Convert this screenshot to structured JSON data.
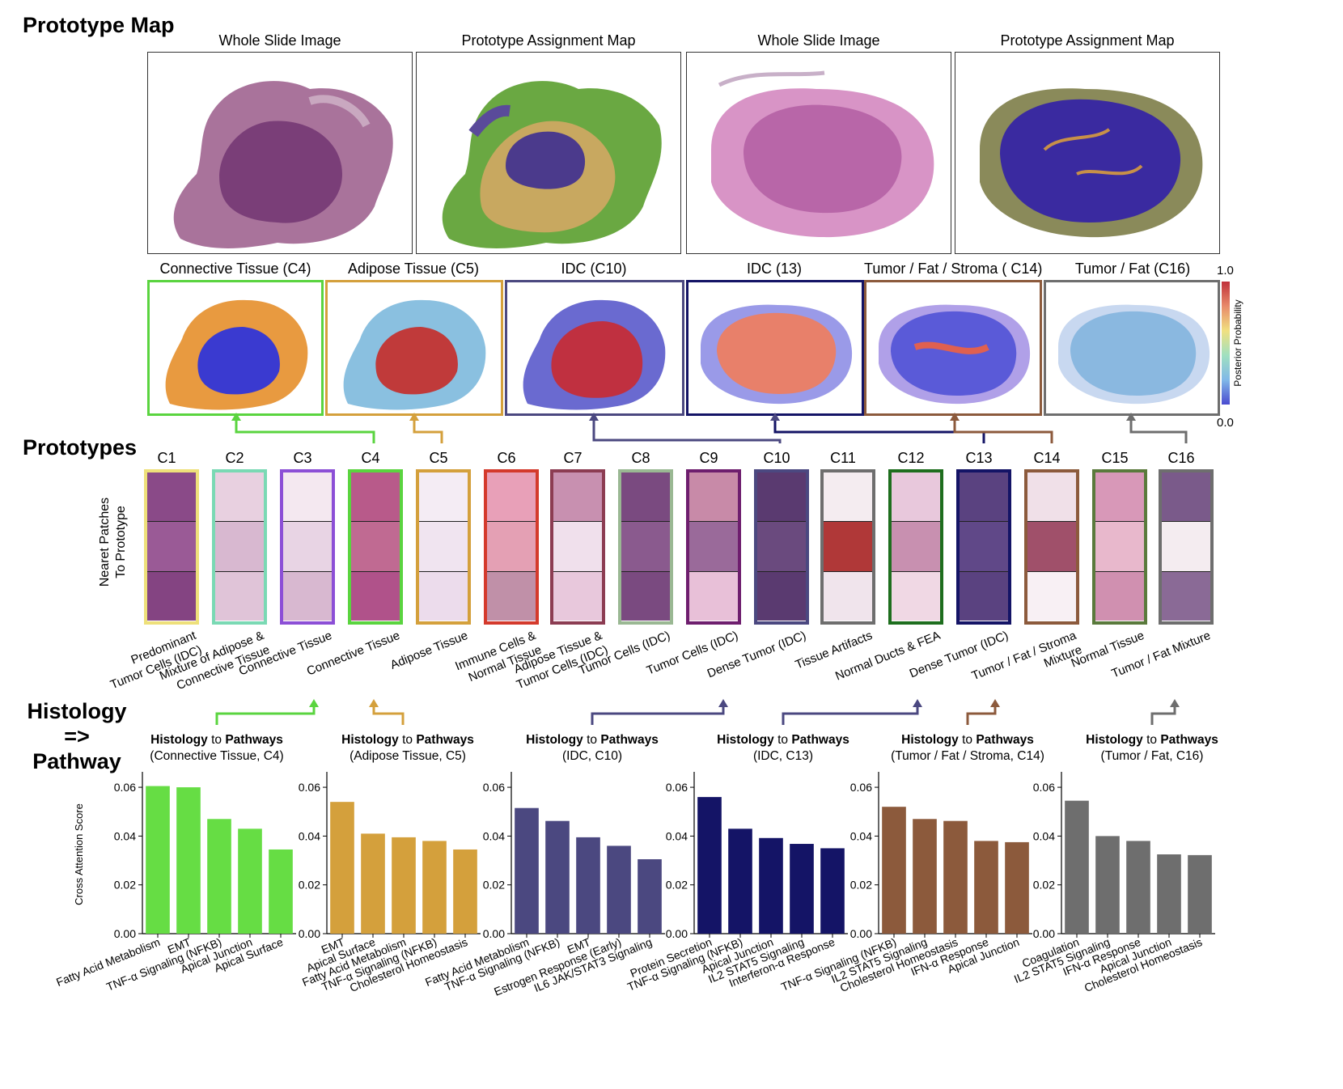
{
  "headings": {
    "prototype_map": "Prototype Map",
    "prototypes": "Prototypes",
    "histology_line1": "Histology",
    "histology_line2": "=> Pathway"
  },
  "slides": [
    {
      "title": "Whole Slide Image"
    },
    {
      "title": "Prototype Assignment Map"
    },
    {
      "title": "Whole Slide Image"
    },
    {
      "title": "Prototype Assignment Map"
    }
  ],
  "heatmaps": [
    {
      "title": "Connective Tissue (C4)",
      "color": "#5ad43f"
    },
    {
      "title": "Adipose Tissue (C5)",
      "color": "#d4a03c"
    },
    {
      "title": "IDC (C10)",
      "color": "#4b4880"
    },
    {
      "title": "IDC (13)",
      "color": "#141466"
    },
    {
      "title": "Tumor / Fat / Stroma ( C14)",
      "color": "#8c5a3c"
    },
    {
      "title": "Tumor / Fat (C16)",
      "color": "#6e6e6e"
    }
  ],
  "colorbar": {
    "max": "1.0",
    "min": "0.0",
    "label": "Posterior Probability"
  },
  "nearest_label_1": "Nearet Patches",
  "nearest_label_2": "To Prototype",
  "prototypes": [
    {
      "id": "C1",
      "color": "#eee07a",
      "desc": "Predominant\nTumor Cells (IDC)"
    },
    {
      "id": "C2",
      "color": "#7ad9b4",
      "desc": "Mixture of Adipose &\nConnective Tissue"
    },
    {
      "id": "C3",
      "color": "#8c4fd6",
      "desc": "Connective Tissue"
    },
    {
      "id": "C4",
      "color": "#5ad43f",
      "desc": "Connective Tissue"
    },
    {
      "id": "C5",
      "color": "#d4a03c",
      "desc": "Adipose Tissue"
    },
    {
      "id": "C6",
      "color": "#d43a2c",
      "desc": "Immune Cells &\nNormal Tissue"
    },
    {
      "id": "C7",
      "color": "#8c3c52",
      "desc": "Adipose Tissue &\nTumor Cells (IDC)"
    },
    {
      "id": "C8",
      "color": "#9ab893",
      "desc": "Tumor Cells (IDC)"
    },
    {
      "id": "C9",
      "color": "#6e1e6e",
      "desc": "Tumor Cells (IDC)"
    },
    {
      "id": "C10",
      "color": "#4b4880",
      "desc": "Dense Tumor (IDC)"
    },
    {
      "id": "C11",
      "color": "#6e6e6e",
      "desc": "Tissue Artifacts"
    },
    {
      "id": "C12",
      "color": "#1e6e1e",
      "desc": "Normal Ducts & FEA"
    },
    {
      "id": "C13",
      "color": "#141466",
      "desc": "Dense Tumor (IDC)"
    },
    {
      "id": "C14",
      "color": "#8c5a3c",
      "desc": "Tumor / Fat / Stroma\nMixture"
    },
    {
      "id": "C15",
      "color": "#5a7a3c",
      "desc": "Normal Tissue"
    },
    {
      "id": "C16",
      "color": "#6e6e6e",
      "desc": "Tumor / Fat Mixture"
    }
  ],
  "chart_data": [
    {
      "type": "bar",
      "title_bold1": "Histology",
      "title_mid": " to ",
      "title_bold2": "Pathways",
      "subtitle": "(Connective Tissue, C4)",
      "color": "#66dd44",
      "ylabel": "Cross Attention Score",
      "ylim": [
        0,
        0.065
      ],
      "yticks": [
        "0.00",
        "0.02",
        "0.04",
        "0.06"
      ],
      "categories": [
        "Fatty Acid Metabolism",
        "EMT",
        "TNF-α Signaling (NFKB)",
        "Apical Junction",
        "Apical Surface"
      ],
      "values": [
        0.0605,
        0.06,
        0.047,
        0.043,
        0.0345
      ]
    },
    {
      "type": "bar",
      "title_bold1": "Histology",
      "title_mid": " to ",
      "title_bold2": "Pathways",
      "subtitle": "(Adipose Tissue, C5)",
      "color": "#d4a03c",
      "ylabel": "",
      "ylim": [
        0,
        0.065
      ],
      "yticks": [
        "0.00",
        "0.02",
        "0.04",
        "0.06"
      ],
      "categories": [
        "EMT",
        "Apical Surface",
        "Fatty Acid Metabolism",
        "TNF-α Signaling (NFKB)",
        "Cholesterol Homeostasis"
      ],
      "values": [
        0.054,
        0.041,
        0.0395,
        0.038,
        0.0345
      ]
    },
    {
      "type": "bar",
      "title_bold1": "Histology",
      "title_mid": " to ",
      "title_bold2": "Pathways",
      "subtitle": "(IDC, C10)",
      "color": "#4b4880",
      "ylabel": "",
      "ylim": [
        0,
        0.065
      ],
      "yticks": [
        "0.00",
        "0.02",
        "0.04",
        "0.06"
      ],
      "categories": [
        "Fatty Acid Metabolism",
        "TNF-α Signaling (NFKB)",
        "EMT",
        "Estrogen Response (Early)",
        "IL6 JAK/STAT3 Signaling"
      ],
      "values": [
        0.0515,
        0.0462,
        0.0395,
        0.036,
        0.0305
      ]
    },
    {
      "type": "bar",
      "title_bold1": "Histology",
      "title_mid": " to ",
      "title_bold2": "Pathways",
      "subtitle": "(IDC, C13)",
      "color": "#141466",
      "ylabel": "",
      "ylim": [
        0,
        0.065
      ],
      "yticks": [
        "0.00",
        "0.02",
        "0.04",
        "0.06"
      ],
      "categories": [
        "Protein Secretion",
        "TNF-α Signaling (NFKB)",
        "Apical Junction",
        "IL2 STAT5 Signaling",
        "Interferon-α Response"
      ],
      "values": [
        0.056,
        0.043,
        0.0392,
        0.0368,
        0.035
      ]
    },
    {
      "type": "bar",
      "title_bold1": "Histology",
      "title_mid": " to ",
      "title_bold2": "Pathways",
      "subtitle": "(Tumor / Fat / Stroma, C14)",
      "color": "#8c5a3c",
      "ylabel": "",
      "ylim": [
        0,
        0.065
      ],
      "yticks": [
        "0.00",
        "0.02",
        "0.04",
        "0.06"
      ],
      "categories": [
        "TNF-α Signaling (NFKB)",
        "IL2 STAT5 Signaling",
        "Cholesterol Homeostasis",
        "IFN-α Response",
        "Apical Junction"
      ],
      "values": [
        0.052,
        0.047,
        0.0462,
        0.038,
        0.0375
      ]
    },
    {
      "type": "bar",
      "title_bold1": "Histology",
      "title_mid": " to ",
      "title_bold2": "Pathways",
      "subtitle": "(Tumor / Fat, C16)",
      "color": "#6e6e6e",
      "ylabel": "",
      "ylim": [
        0,
        0.065
      ],
      "yticks": [
        "0.00",
        "0.02",
        "0.04",
        "0.06"
      ],
      "categories": [
        "Coagulation",
        "IL2 STAT5 Signaling",
        "IFN-α Response",
        "Apical Junction",
        "Cholesterol Homeostasis"
      ],
      "values": [
        0.0545,
        0.04,
        0.038,
        0.0325,
        0.0322
      ]
    }
  ]
}
